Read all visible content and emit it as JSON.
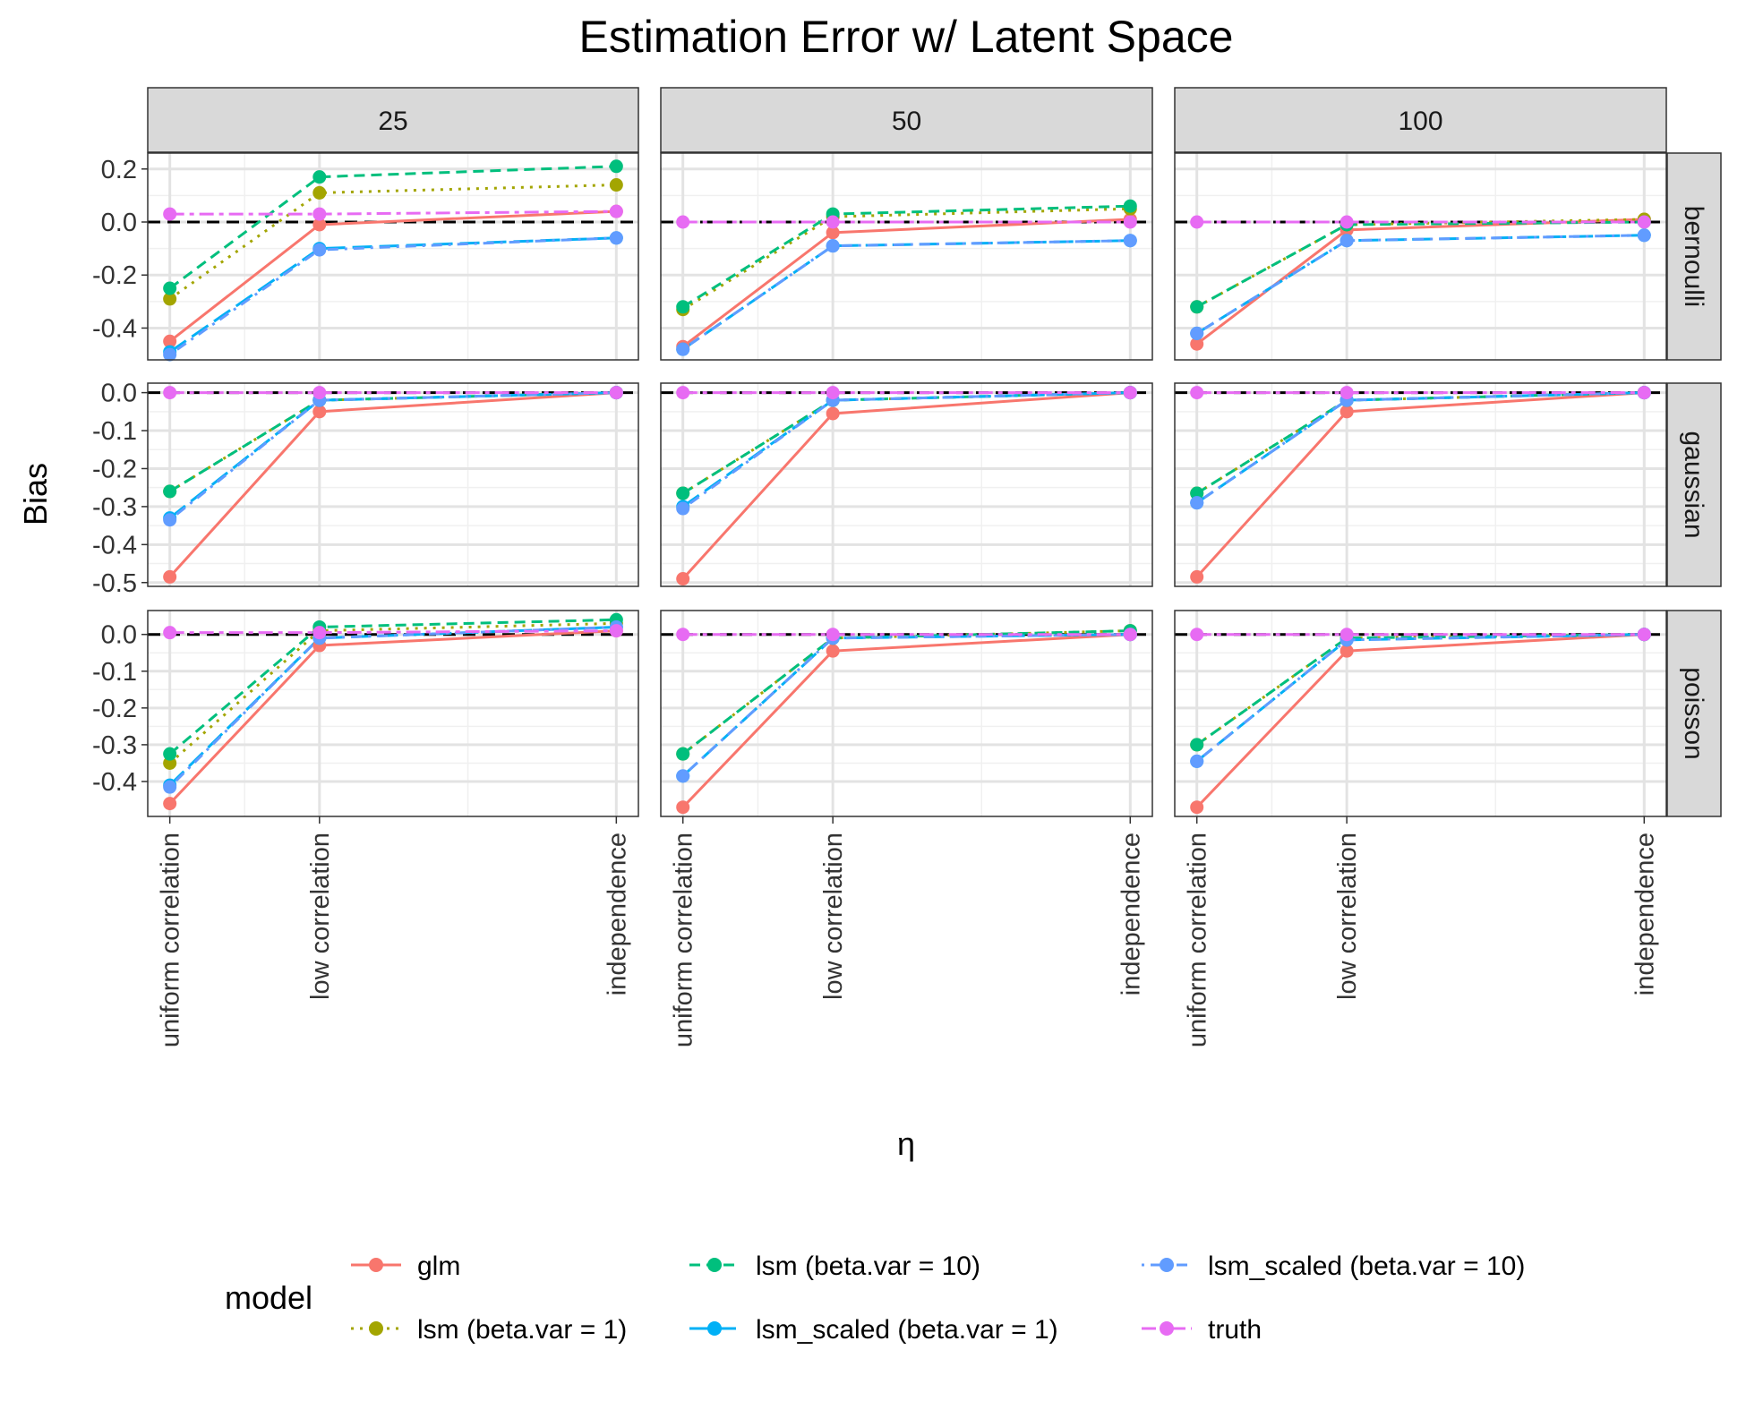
{
  "chart_data": {
    "type": "line",
    "title": "Estimation Error w/ Latent Space",
    "xlabel": "η",
    "ylabel": "Bias",
    "categories": [
      "uniform correlation",
      "low correlation",
      "independence"
    ],
    "column_facets": [
      "25",
      "50",
      "100"
    ],
    "row_facets": [
      "bernoulli",
      "gaussian",
      "poisson"
    ],
    "reference_line": 0,
    "grid": true,
    "legend": {
      "title": "model",
      "placement": "bottom"
    },
    "series_styles": [
      {
        "name": "glm",
        "color": "#F8766D",
        "dash": "solid"
      },
      {
        "name": "lsm (beta.var = 1)",
        "color": "#A3A500",
        "dash": "dotted"
      },
      {
        "name": "lsm (beta.var = 10)",
        "color": "#00BF7D",
        "dash": "dashed"
      },
      {
        "name": "lsm_scaled (beta.var = 1)",
        "color": "#00B0F6",
        "dash": "longdash"
      },
      {
        "name": "lsm_scaled (beta.var = 10)",
        "color": "#619CFF",
        "dash": "dotdash"
      },
      {
        "name": "truth",
        "color": "#E76BF3",
        "dash": "twodash"
      }
    ],
    "row_axes": [
      {
        "ylim": [
          -0.52,
          0.26
        ],
        "ticks": [
          0.2,
          0.0,
          -0.2,
          -0.4
        ],
        "tick_labels": [
          "0.2",
          "0.0",
          "-0.2",
          "-0.4"
        ]
      },
      {
        "ylim": [
          -0.51,
          0.025
        ],
        "ticks": [
          0.0,
          -0.1,
          -0.2,
          -0.3,
          -0.4,
          -0.5
        ],
        "tick_labels": [
          "0.0",
          "-0.1",
          "-0.2",
          "-0.3",
          "-0.4",
          "-0.5"
        ]
      },
      {
        "ylim": [
          -0.495,
          0.065
        ],
        "ticks": [
          0.0,
          -0.1,
          -0.2,
          -0.3,
          -0.4
        ],
        "tick_labels": [
          "0.0",
          "-0.1",
          "-0.2",
          "-0.3",
          "-0.4"
        ]
      }
    ],
    "panels": [
      {
        "row": "bernoulli",
        "col": "25",
        "series": [
          {
            "name": "glm",
            "values": [
              -0.45,
              -0.01,
              0.04
            ]
          },
          {
            "name": "lsm (beta.var = 1)",
            "values": [
              -0.29,
              0.11,
              0.14
            ]
          },
          {
            "name": "lsm (beta.var = 10)",
            "values": [
              -0.25,
              0.17,
              0.21
            ]
          },
          {
            "name": "lsm_scaled (beta.var = 1)",
            "values": [
              -0.49,
              -0.1,
              -0.06
            ]
          },
          {
            "name": "lsm_scaled (beta.var = 10)",
            "values": [
              -0.5,
              -0.105,
              -0.06
            ]
          },
          {
            "name": "truth",
            "values": [
              0.03,
              0.03,
              0.04
            ]
          }
        ]
      },
      {
        "row": "bernoulli",
        "col": "50",
        "series": [
          {
            "name": "glm",
            "values": [
              -0.47,
              -0.04,
              0.01
            ]
          },
          {
            "name": "lsm (beta.var = 1)",
            "values": [
              -0.33,
              0.02,
              0.05
            ]
          },
          {
            "name": "lsm (beta.var = 10)",
            "values": [
              -0.32,
              0.03,
              0.06
            ]
          },
          {
            "name": "lsm_scaled (beta.var = 1)",
            "values": [
              -0.48,
              -0.09,
              -0.07
            ]
          },
          {
            "name": "lsm_scaled (beta.var = 10)",
            "values": [
              -0.48,
              -0.09,
              -0.07
            ]
          },
          {
            "name": "truth",
            "values": [
              0.0,
              0.0,
              0.0
            ]
          }
        ]
      },
      {
        "row": "bernoulli",
        "col": "100",
        "series": [
          {
            "name": "glm",
            "values": [
              -0.46,
              -0.03,
              0.01
            ]
          },
          {
            "name": "lsm (beta.var = 1)",
            "values": [
              -0.32,
              -0.01,
              0.01
            ]
          },
          {
            "name": "lsm (beta.var = 10)",
            "values": [
              -0.32,
              -0.01,
              0.0
            ]
          },
          {
            "name": "lsm_scaled (beta.var = 1)",
            "values": [
              -0.42,
              -0.07,
              -0.05
            ]
          },
          {
            "name": "lsm_scaled (beta.var = 10)",
            "values": [
              -0.42,
              -0.07,
              -0.05
            ]
          },
          {
            "name": "truth",
            "values": [
              0.0,
              0.0,
              0.0
            ]
          }
        ]
      },
      {
        "row": "gaussian",
        "col": "25",
        "series": [
          {
            "name": "glm",
            "values": [
              -0.485,
              -0.05,
              0.0
            ]
          },
          {
            "name": "lsm (beta.var = 1)",
            "values": [
              -0.26,
              -0.02,
              0.0
            ]
          },
          {
            "name": "lsm (beta.var = 10)",
            "values": [
              -0.26,
              -0.02,
              0.0
            ]
          },
          {
            "name": "lsm_scaled (beta.var = 1)",
            "values": [
              -0.33,
              -0.02,
              0.0
            ]
          },
          {
            "name": "lsm_scaled (beta.var = 10)",
            "values": [
              -0.335,
              -0.02,
              0.0
            ]
          },
          {
            "name": "truth",
            "values": [
              0.0,
              0.0,
              0.0
            ]
          }
        ]
      },
      {
        "row": "gaussian",
        "col": "50",
        "series": [
          {
            "name": "glm",
            "values": [
              -0.49,
              -0.055,
              0.0
            ]
          },
          {
            "name": "lsm (beta.var = 1)",
            "values": [
              -0.265,
              -0.02,
              0.0
            ]
          },
          {
            "name": "lsm (beta.var = 10)",
            "values": [
              -0.265,
              -0.02,
              0.0
            ]
          },
          {
            "name": "lsm_scaled (beta.var = 1)",
            "values": [
              -0.3,
              -0.02,
              0.0
            ]
          },
          {
            "name": "lsm_scaled (beta.var = 10)",
            "values": [
              -0.305,
              -0.02,
              0.0
            ]
          },
          {
            "name": "truth",
            "values": [
              0.0,
              0.0,
              0.0
            ]
          }
        ]
      },
      {
        "row": "gaussian",
        "col": "100",
        "series": [
          {
            "name": "glm",
            "values": [
              -0.485,
              -0.05,
              0.0
            ]
          },
          {
            "name": "lsm (beta.var = 1)",
            "values": [
              -0.265,
              -0.02,
              0.0
            ]
          },
          {
            "name": "lsm (beta.var = 10)",
            "values": [
              -0.265,
              -0.02,
              0.0
            ]
          },
          {
            "name": "lsm_scaled (beta.var = 1)",
            "values": [
              -0.29,
              -0.02,
              0.0
            ]
          },
          {
            "name": "lsm_scaled (beta.var = 10)",
            "values": [
              -0.29,
              -0.02,
              0.0
            ]
          },
          {
            "name": "truth",
            "values": [
              0.0,
              0.0,
              0.0
            ]
          }
        ]
      },
      {
        "row": "poisson",
        "col": "25",
        "series": [
          {
            "name": "glm",
            "values": [
              -0.46,
              -0.03,
              0.01
            ]
          },
          {
            "name": "lsm (beta.var = 1)",
            "values": [
              -0.35,
              0.01,
              0.03
            ]
          },
          {
            "name": "lsm (beta.var = 10)",
            "values": [
              -0.325,
              0.02,
              0.04
            ]
          },
          {
            "name": "lsm_scaled (beta.var = 1)",
            "values": [
              -0.41,
              -0.01,
              0.02
            ]
          },
          {
            "name": "lsm_scaled (beta.var = 10)",
            "values": [
              -0.415,
              -0.01,
              0.02
            ]
          },
          {
            "name": "truth",
            "values": [
              0.005,
              0.005,
              0.01
            ]
          }
        ]
      },
      {
        "row": "poisson",
        "col": "50",
        "series": [
          {
            "name": "glm",
            "values": [
              -0.47,
              -0.045,
              0.0
            ]
          },
          {
            "name": "lsm (beta.var = 1)",
            "values": [
              -0.325,
              -0.01,
              0.01
            ]
          },
          {
            "name": "lsm (beta.var = 10)",
            "values": [
              -0.325,
              -0.01,
              0.01
            ]
          },
          {
            "name": "lsm_scaled (beta.var = 1)",
            "values": [
              -0.385,
              -0.01,
              0.0
            ]
          },
          {
            "name": "lsm_scaled (beta.var = 10)",
            "values": [
              -0.385,
              -0.01,
              0.0
            ]
          },
          {
            "name": "truth",
            "values": [
              0.0,
              0.0,
              0.0
            ]
          }
        ]
      },
      {
        "row": "poisson",
        "col": "100",
        "series": [
          {
            "name": "glm",
            "values": [
              -0.47,
              -0.045,
              0.0
            ]
          },
          {
            "name": "lsm (beta.var = 1)",
            "values": [
              -0.3,
              -0.01,
              0.0
            ]
          },
          {
            "name": "lsm (beta.var = 10)",
            "values": [
              -0.3,
              -0.01,
              0.0
            ]
          },
          {
            "name": "lsm_scaled (beta.var = 1)",
            "values": [
              -0.345,
              -0.015,
              0.0
            ]
          },
          {
            "name": "lsm_scaled (beta.var = 10)",
            "values": [
              -0.345,
              -0.015,
              0.0
            ]
          },
          {
            "name": "truth",
            "values": [
              0.0,
              0.0,
              0.0
            ]
          }
        ]
      }
    ]
  }
}
